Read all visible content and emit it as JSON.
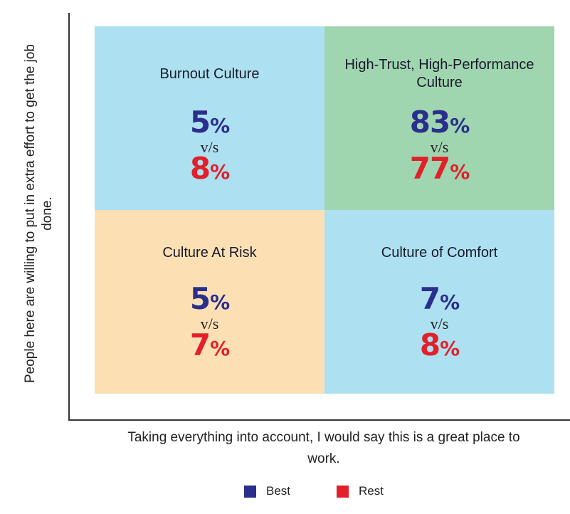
{
  "y_axis_label": "People here are willing to put in extra effort to get the job done.",
  "x_axis_label": "Taking everything into account, I would say this is a great place to work.",
  "vs_label": "v/s",
  "percent_sign": "%",
  "quadrants": [
    {
      "title": "Burnout Culture",
      "best": "5",
      "rest": "8",
      "color": "#ade0f0"
    },
    {
      "title": "High-Trust, High-Performance Culture",
      "best": "83",
      "rest": "77",
      "color": "#9fd6b0"
    },
    {
      "title": "Culture At Risk",
      "best": "5",
      "rest": "7",
      "color": "#fce0b4"
    },
    {
      "title": "Culture of Comfort",
      "best": "7",
      "rest": "8",
      "color": "#ade0f0"
    }
  ],
  "legend": [
    {
      "label": "Best",
      "color": "#2a2e8c"
    },
    {
      "label": "Rest",
      "color": "#e1202a"
    }
  ]
}
